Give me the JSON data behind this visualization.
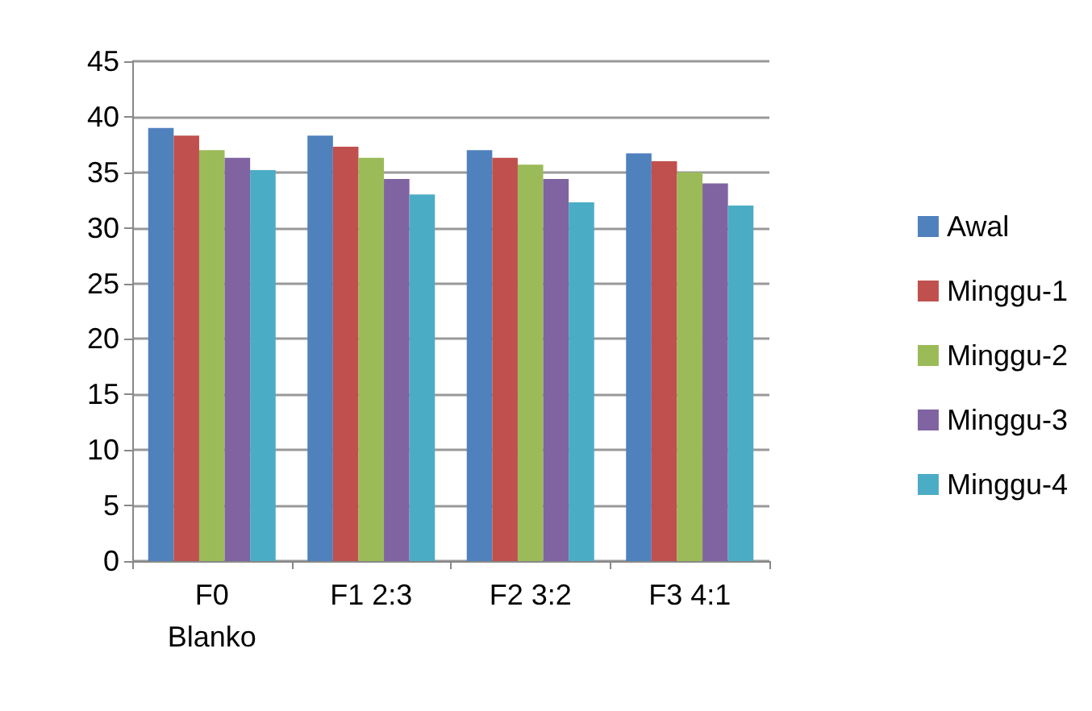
{
  "chart_data": {
    "type": "bar",
    "categories": [
      "F0\nBlanko",
      "F1 2:3",
      "F2 3:2",
      "F3 4:1"
    ],
    "series": [
      {
        "name": "Awal",
        "color": "#4f81bd",
        "values": [
          39.0,
          38.3,
          37.0,
          36.7
        ]
      },
      {
        "name": "Minggu-1",
        "color": "#c0504d",
        "values": [
          38.3,
          37.3,
          36.3,
          36.0
        ]
      },
      {
        "name": "Minggu-2",
        "color": "#9bbb59",
        "values": [
          37.0,
          36.3,
          35.7,
          35.0
        ]
      },
      {
        "name": "Minggu-3",
        "color": "#8064a2",
        "values": [
          36.3,
          34.4,
          34.4,
          34.0
        ]
      },
      {
        "name": "Minggu-4",
        "color": "#4bacc6",
        "values": [
          35.2,
          33.0,
          32.3,
          32.0
        ]
      }
    ],
    "ylim": [
      0,
      45
    ],
    "yticks": [
      0,
      5,
      10,
      15,
      20,
      25,
      30,
      35,
      40,
      45
    ],
    "grid": "y",
    "legend": "right"
  }
}
